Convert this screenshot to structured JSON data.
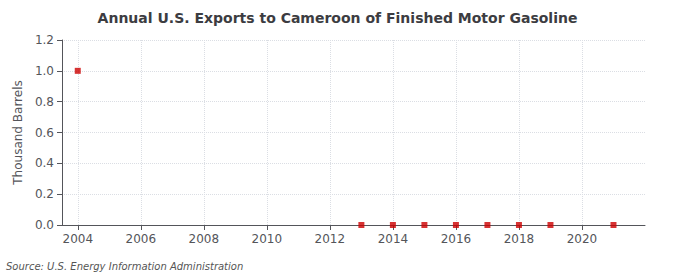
{
  "chart_data": {
    "type": "scatter",
    "title": "Annual U.S. Exports to Cameroon of Finished Motor Gasoline",
    "ylabel": "Thousand Barrels",
    "annotations": [
      "Source: U.S. Energy Information Administration"
    ],
    "x": [
      2004,
      2013,
      2014,
      2015,
      2016,
      2017,
      2018,
      2019,
      2021
    ],
    "values": [
      1.0,
      0.0,
      0.0,
      0.0,
      0.0,
      0.0,
      0.0,
      0.0,
      0.0
    ],
    "color": "#cc0000",
    "marker": "square",
    "xlim": [
      2003.5,
      2022
    ],
    "xticks": [
      2004,
      2006,
      2008,
      2010,
      2012,
      2014,
      2016,
      2018,
      2020
    ],
    "ylim": [
      0.0,
      1.2
    ],
    "yticks": [
      {
        "value": 0,
        "label": "0.0"
      },
      0.2,
      0.4,
      0.6,
      0.8,
      {
        "value": 1,
        "label": "1.0"
      },
      1.2
    ],
    "grid": true
  }
}
